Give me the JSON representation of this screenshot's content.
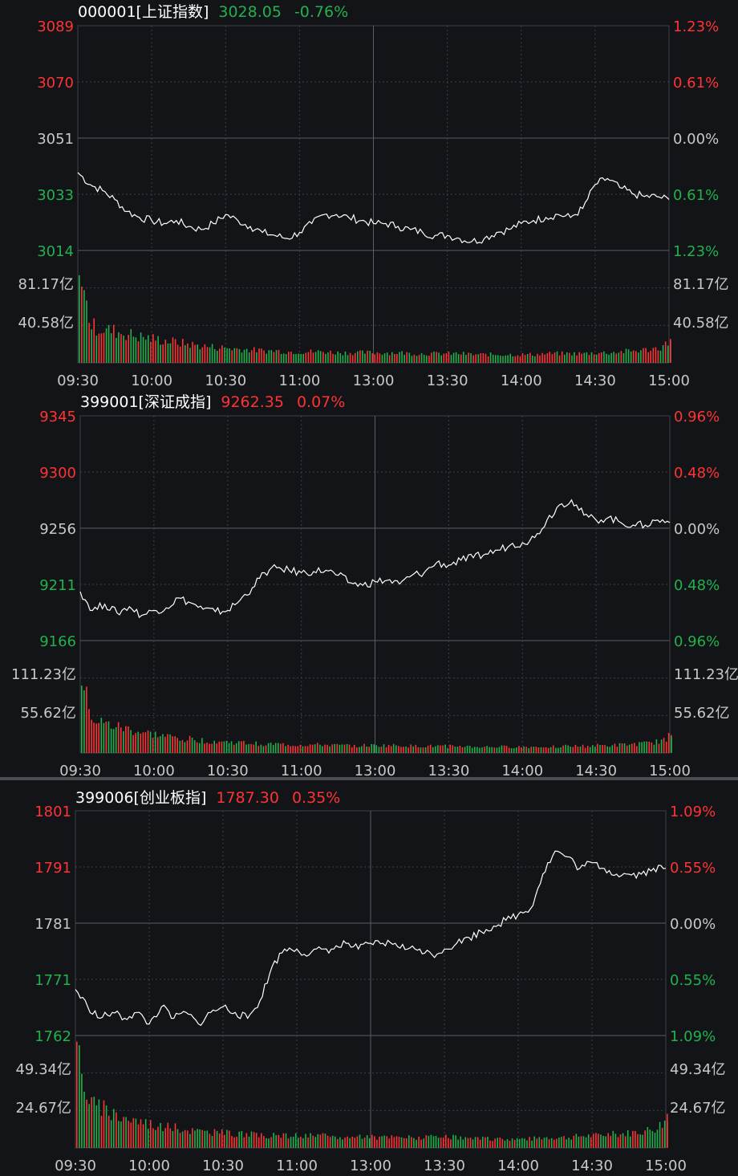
{
  "colors": {
    "background": "#121418",
    "up": "#ff3333",
    "down": "#22b14c",
    "flat": "#c8c8c8",
    "line": "#ffffff",
    "grid": "#3c3f45"
  },
  "time_labels": [
    "09:30",
    "10:00",
    "10:30",
    "11:00",
    "13:00",
    "13:30",
    "14:00",
    "14:30",
    "15:00"
  ],
  "chart_data": [
    {
      "type": "line",
      "code": "000001",
      "name": "[上证指数]",
      "price": "3028.05",
      "change": "-0.76%",
      "change_color": "down",
      "y_labels": [
        "3089",
        "3070",
        "3051",
        "3033",
        "3014"
      ],
      "pct_labels": [
        "1.23%",
        "0.61%",
        "0.00%",
        "0.61%",
        "1.23%"
      ],
      "ylim": [
        3014,
        3089
      ],
      "volume_labels": [
        "81.17亿",
        "40.58亿"
      ],
      "volume_max": 121.76,
      "x": [
        0,
        5,
        10,
        15,
        20,
        25,
        30,
        35,
        40,
        45,
        50,
        55,
        60,
        65,
        70,
        75,
        80,
        85,
        90,
        95,
        100,
        105,
        110,
        115,
        120,
        125,
        130,
        135,
        140,
        145,
        150,
        155,
        160,
        165,
        170,
        175,
        180,
        185,
        190,
        195,
        200,
        205,
        210,
        215,
        220,
        225,
        230,
        235,
        240
      ],
      "values": [
        3040,
        3036,
        3034,
        3031,
        3027,
        3025,
        3024,
        3023,
        3024,
        3022,
        3021,
        3023,
        3026,
        3024,
        3022,
        3020,
        3019,
        3018,
        3020,
        3023,
        3026,
        3026,
        3025,
        3024,
        3023,
        3023,
        3022,
        3021,
        3020,
        3019,
        3019,
        3018,
        3017,
        3018,
        3020,
        3021,
        3023,
        3024,
        3025,
        3026,
        3025,
        3028,
        3036,
        3038,
        3035,
        3033,
        3032,
        3032,
        3031
      ],
      "volumes": [
        95,
        40,
        36,
        34,
        31,
        28,
        26,
        24,
        22,
        20,
        18,
        17,
        16,
        15,
        14,
        13,
        13,
        12,
        12,
        12,
        12,
        11,
        11,
        11,
        11,
        11,
        11,
        10,
        10,
        10,
        10,
        10,
        9,
        9,
        9,
        9,
        9,
        9,
        10,
        10,
        10,
        10,
        11,
        11,
        12,
        13,
        14,
        16,
        22
      ]
    },
    {
      "type": "line",
      "code": "399001",
      "name": "[深证成指]",
      "price": "9262.35",
      "change": "0.07%",
      "change_color": "up",
      "y_labels": [
        "9345",
        "9300",
        "9256",
        "9211",
        "9166"
      ],
      "pct_labels": [
        "0.96%",
        "0.48%",
        "0.00%",
        "0.48%",
        "0.96%"
      ],
      "ylim": [
        9166,
        9345
      ],
      "volume_labels": [
        "111.23亿",
        "55.62亿"
      ],
      "volume_max": 166.85,
      "x": [
        0,
        5,
        10,
        15,
        20,
        25,
        30,
        35,
        40,
        45,
        50,
        55,
        60,
        65,
        70,
        75,
        80,
        85,
        90,
        95,
        100,
        105,
        110,
        115,
        120,
        125,
        130,
        135,
        140,
        145,
        150,
        155,
        160,
        165,
        170,
        175,
        180,
        185,
        190,
        195,
        200,
        205,
        210,
        215,
        220,
        225,
        230,
        235,
        240
      ],
      "values": [
        9205,
        9190,
        9195,
        9188,
        9193,
        9186,
        9190,
        9192,
        9200,
        9196,
        9191,
        9189,
        9190,
        9198,
        9208,
        9220,
        9224,
        9222,
        9220,
        9221,
        9222,
        9218,
        9212,
        9210,
        9213,
        9214,
        9211,
        9218,
        9220,
        9228,
        9226,
        9230,
        9232,
        9235,
        9238,
        9242,
        9244,
        9248,
        9262,
        9274,
        9278,
        9266,
        9262,
        9264,
        9260,
        9258,
        9258,
        9262,
        9260
      ],
      "volumes": [
        100,
        48,
        42,
        38,
        34,
        30,
        27,
        24,
        22,
        20,
        18,
        17,
        16,
        15,
        14,
        13,
        13,
        12,
        12,
        12,
        12,
        11,
        11,
        11,
        11,
        11,
        11,
        10,
        10,
        10,
        10,
        10,
        9,
        9,
        9,
        9,
        9,
        9,
        10,
        10,
        10,
        10,
        11,
        11,
        12,
        13,
        14,
        17,
        26
      ]
    },
    {
      "type": "line",
      "code": "399006",
      "name": "[创业板指]",
      "price": "1787.30",
      "change": "0.35%",
      "change_color": "up",
      "y_labels": [
        "1801",
        "1791",
        "1781",
        "1771",
        "1762"
      ],
      "pct_labels": [
        "1.09%",
        "0.55%",
        "0.00%",
        "0.55%",
        "1.09%"
      ],
      "ylim": [
        1762,
        1801
      ],
      "volume_labels": [
        "49.34亿",
        "24.67亿"
      ],
      "volume_max": 74.01,
      "x": [
        0,
        5,
        10,
        15,
        20,
        25,
        30,
        35,
        40,
        45,
        50,
        55,
        60,
        65,
        70,
        75,
        80,
        85,
        90,
        95,
        100,
        105,
        110,
        115,
        120,
        125,
        130,
        135,
        140,
        145,
        150,
        155,
        160,
        165,
        170,
        175,
        180,
        185,
        190,
        195,
        200,
        205,
        210,
        215,
        220,
        225,
        230,
        235,
        240
      ],
      "values": [
        1770,
        1767,
        1765,
        1766,
        1765,
        1766,
        1764,
        1767,
        1765,
        1766,
        1764,
        1766,
        1767,
        1766,
        1765,
        1768,
        1774,
        1777,
        1777,
        1776,
        1777,
        1777,
        1778,
        1777,
        1778,
        1778,
        1778,
        1777,
        1777,
        1776,
        1777,
        1778,
        1779,
        1780,
        1781,
        1782,
        1783,
        1784,
        1790,
        1794,
        1793,
        1791,
        1792,
        1791,
        1790,
        1790,
        1790,
        1791,
        1791
      ],
      "volumes": [
        70,
        30,
        26,
        23,
        20,
        18,
        16,
        14,
        13,
        12,
        11,
        10,
        10,
        9,
        9,
        8,
        8,
        8,
        8,
        8,
        8,
        7,
        7,
        7,
        7,
        7,
        7,
        7,
        7,
        7,
        7,
        7,
        6,
        6,
        6,
        6,
        6,
        6,
        7,
        7,
        7,
        8,
        8,
        9,
        9,
        10,
        11,
        13,
        18
      ]
    }
  ]
}
